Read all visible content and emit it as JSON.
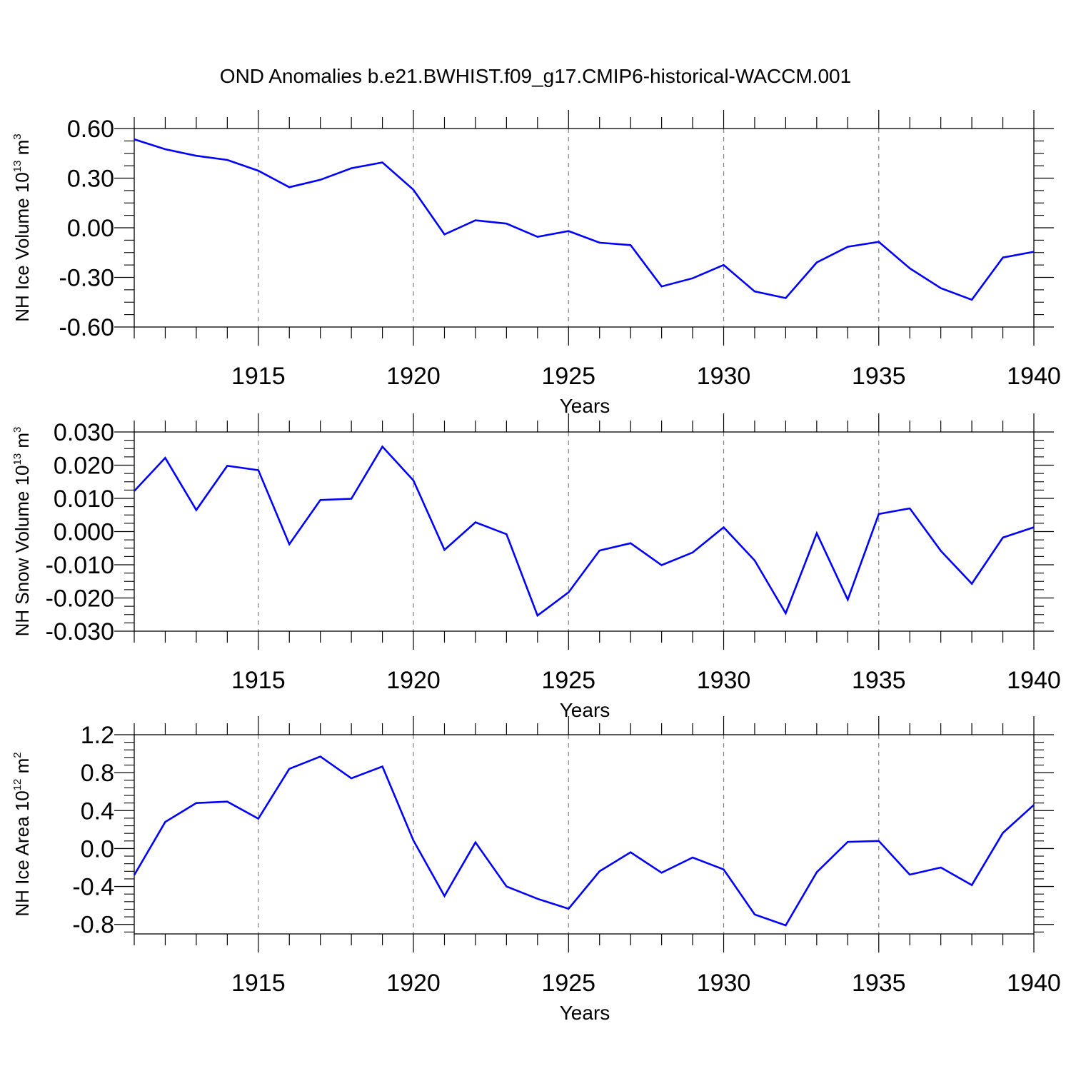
{
  "title": "OND Anomalies b.e21.BWHIST.f09_g17.CMIP6-historical-WACCM.001",
  "line_color": "#0000ff",
  "chart_data": [
    {
      "type": "line",
      "ylabel": {
        "text": "NH Ice Volume 10",
        "sup1": "13",
        "unit": " m",
        "sup2": "3"
      },
      "xlabel": "Years",
      "xlim": [
        1911,
        1940
      ],
      "ylim": [
        -0.6,
        0.6
      ],
      "yticks": [
        -0.6,
        -0.3,
        0.0,
        0.3,
        0.6
      ],
      "ytick_labels": [
        "-0.60",
        "-0.30",
        "0.00",
        "0.30",
        "0.60"
      ],
      "xticks": [
        1915,
        1920,
        1925,
        1930,
        1935,
        1940
      ],
      "xtick_labels": [
        "1915",
        "1920",
        "1925",
        "1930",
        "1935",
        "1940"
      ],
      "x": [
        1911,
        1912,
        1913,
        1914,
        1915,
        1916,
        1917,
        1918,
        1919,
        1920,
        1921,
        1922,
        1923,
        1924,
        1925,
        1926,
        1927,
        1928,
        1929,
        1930,
        1931,
        1932,
        1933,
        1934,
        1935,
        1936,
        1937,
        1938,
        1939,
        1940
      ],
      "values": [
        0.535,
        0.475,
        0.435,
        0.41,
        0.345,
        0.245,
        0.29,
        0.36,
        0.395,
        0.23,
        -0.04,
        0.045,
        0.025,
        -0.055,
        -0.02,
        -0.09,
        -0.105,
        -0.355,
        -0.305,
        -0.225,
        -0.385,
        -0.425,
        -0.21,
        -0.115,
        -0.085,
        -0.245,
        -0.365,
        -0.435,
        -0.18,
        -0.145
      ]
    },
    {
      "type": "line",
      "ylabel": {
        "text": "NH Snow Volume 10",
        "sup1": "13",
        "unit": " m",
        "sup2": "3"
      },
      "xlabel": "Years",
      "xlim": [
        1911,
        1940
      ],
      "ylim": [
        -0.03,
        0.03
      ],
      "yticks": [
        -0.03,
        -0.02,
        -0.01,
        0.0,
        0.01,
        0.02,
        0.03
      ],
      "ytick_labels": [
        "-0.030",
        "-0.020",
        "-0.010",
        "0.000",
        "0.010",
        "0.020",
        "0.030"
      ],
      "xticks": [
        1915,
        1920,
        1925,
        1930,
        1935,
        1940
      ],
      "xtick_labels": [
        "1915",
        "1920",
        "1925",
        "1930",
        "1935",
        "1940"
      ],
      "x": [
        1911,
        1912,
        1913,
        1914,
        1915,
        1916,
        1917,
        1918,
        1919,
        1920,
        1921,
        1922,
        1923,
        1924,
        1925,
        1926,
        1927,
        1928,
        1929,
        1930,
        1931,
        1932,
        1933,
        1934,
        1935,
        1936,
        1937,
        1938,
        1939,
        1940
      ],
      "values": [
        0.0122,
        0.0222,
        0.0065,
        0.0198,
        0.0185,
        -0.0038,
        0.0095,
        0.0099,
        0.0256,
        0.0154,
        -0.0055,
        0.0028,
        -0.0008,
        -0.0253,
        -0.0183,
        -0.0057,
        -0.0035,
        -0.0101,
        -0.0063,
        0.0013,
        -0.0087,
        -0.0246,
        -0.0005,
        -0.0205,
        0.0053,
        0.007,
        -0.0058,
        -0.0157,
        -0.0018,
        0.0013
      ]
    },
    {
      "type": "line",
      "ylabel": {
        "text": "NH Ice Area 10",
        "sup1": "12",
        "unit": " m",
        "sup2": "2"
      },
      "xlabel": "Years",
      "xlim": [
        1911,
        1940
      ],
      "ylim": [
        -0.9,
        1.2
      ],
      "yticks": [
        -0.8,
        -0.4,
        0.0,
        0.4,
        0.8,
        1.2
      ],
      "ytick_labels": [
        "-0.8",
        "-0.4",
        "0.0",
        "0.4",
        "0.8",
        "1.2"
      ],
      "xticks": [
        1915,
        1920,
        1925,
        1930,
        1935,
        1940
      ],
      "xtick_labels": [
        "1915",
        "1920",
        "1925",
        "1930",
        "1935",
        "1940"
      ],
      "x": [
        1911,
        1912,
        1913,
        1914,
        1915,
        1916,
        1917,
        1918,
        1919,
        1920,
        1921,
        1922,
        1923,
        1924,
        1925,
        1926,
        1927,
        1928,
        1929,
        1930,
        1931,
        1932,
        1933,
        1934,
        1935,
        1936,
        1937,
        1938,
        1939,
        1940
      ],
      "values": [
        -0.28,
        0.28,
        0.48,
        0.495,
        0.315,
        0.84,
        0.97,
        0.74,
        0.865,
        0.085,
        -0.5,
        0.065,
        -0.4,
        -0.53,
        -0.635,
        -0.24,
        -0.04,
        -0.255,
        -0.095,
        -0.22,
        -0.695,
        -0.81,
        -0.25,
        0.07,
        0.08,
        -0.275,
        -0.2,
        -0.385,
        0.165,
        0.46
      ]
    }
  ]
}
